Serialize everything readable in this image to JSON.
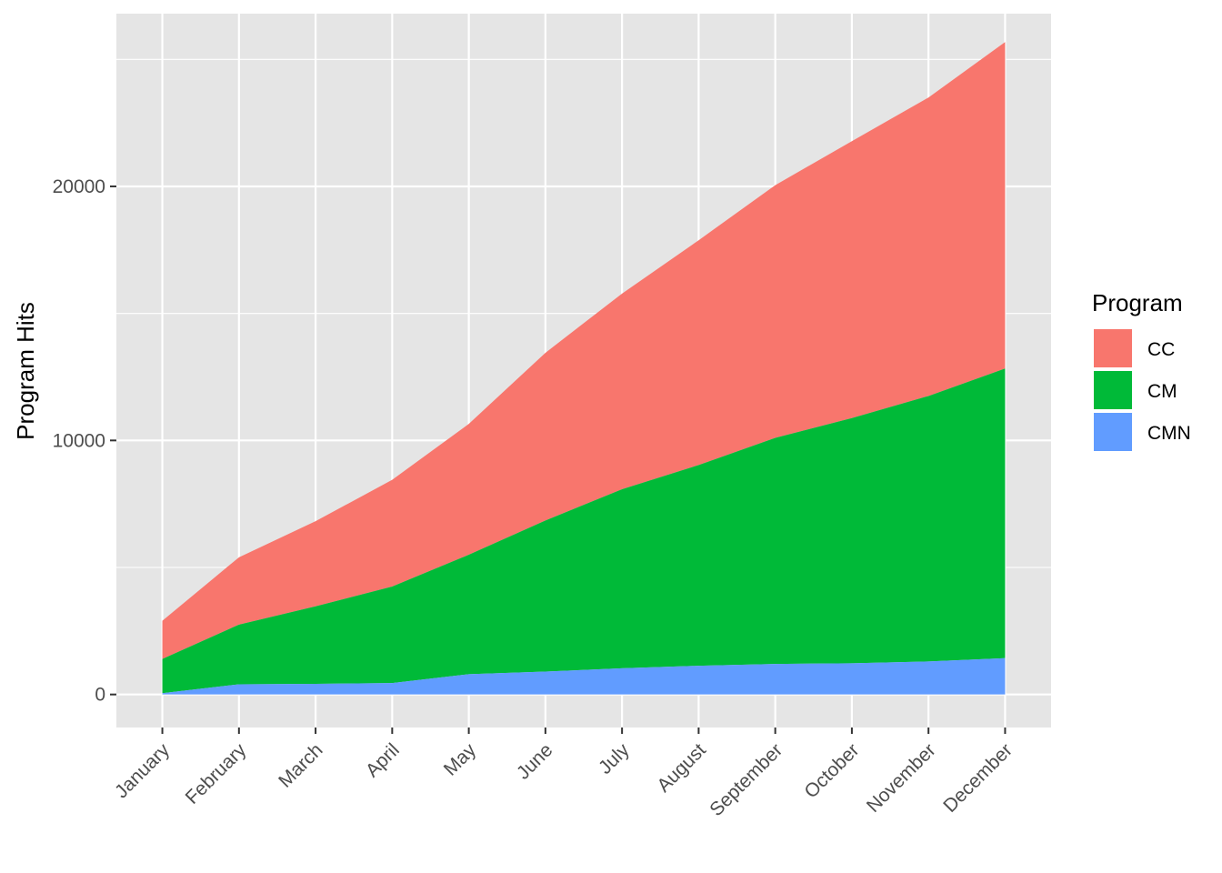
{
  "chart_data": {
    "type": "area",
    "stacked": true,
    "title": "",
    "xlabel": "",
    "ylabel": "Program Hits",
    "categories": [
      "January",
      "February",
      "March",
      "April",
      "May",
      "June",
      "July",
      "August",
      "September",
      "October",
      "November",
      "December"
    ],
    "y_ticks": [
      0,
      10000,
      20000
    ],
    "ylim": [
      -1300,
      26800
    ],
    "grid": true,
    "legend": {
      "title": "Program",
      "position": "right"
    },
    "series": [
      {
        "name": "CC",
        "color": "#F8766D",
        "values": [
          1500,
          2650,
          3350,
          4200,
          5150,
          6600,
          7700,
          8850,
          9950,
          10900,
          11750,
          12850
        ]
      },
      {
        "name": "CM",
        "color": "#00BA38",
        "values": [
          1350,
          2350,
          3050,
          3800,
          4700,
          5950,
          7050,
          7900,
          8900,
          9650,
          10450,
          11400
        ]
      },
      {
        "name": "CMN",
        "color": "#619CFF",
        "values": [
          50,
          400,
          420,
          450,
          800,
          900,
          1030,
          1130,
          1200,
          1230,
          1300,
          1430
        ]
      }
    ]
  }
}
